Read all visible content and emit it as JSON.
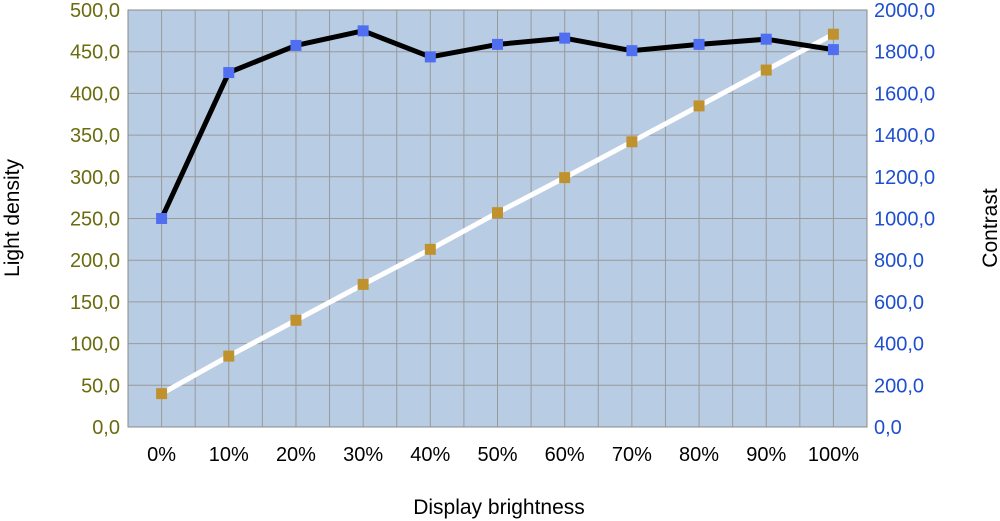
{
  "chart_data": {
    "type": "line",
    "categories": [
      "0%",
      "10%",
      "20%",
      "30%",
      "40%",
      "50%",
      "60%",
      "70%",
      "80%",
      "90%",
      "100%"
    ],
    "xlabel": "Display brightness",
    "ylabel_left": "Light density",
    "ylabel_right": "Contrast",
    "ylim_left": [
      0,
      500
    ],
    "ylim_right": [
      0,
      2000
    ],
    "yticks_left": [
      "0,0",
      "50,0",
      "100,0",
      "150,0",
      "200,0",
      "250,0",
      "300,0",
      "350,0",
      "400,0",
      "450,0",
      "500,0"
    ],
    "yticks_right": [
      "0,0",
      "200,0",
      "400,0",
      "600,0",
      "800,0",
      "1000,0",
      "1200,0",
      "1400,0",
      "1600,0",
      "1800,0",
      "2000,0"
    ],
    "grid": true,
    "plot_background": "#b8cce4",
    "series": [
      {
        "axis": "right",
        "line_color": "#000000",
        "marker_color": "#4f6ff0",
        "values": [
          1000,
          1700,
          1830,
          1900,
          1775,
          1835,
          1865,
          1805,
          1835,
          1860,
          1810
        ]
      },
      {
        "axis": "left",
        "line_color": "#ffffff",
        "marker_color": "#c0922e",
        "values": [
          40,
          85,
          128,
          171,
          213,
          257,
          299,
          342,
          385,
          428,
          471
        ]
      }
    ]
  }
}
